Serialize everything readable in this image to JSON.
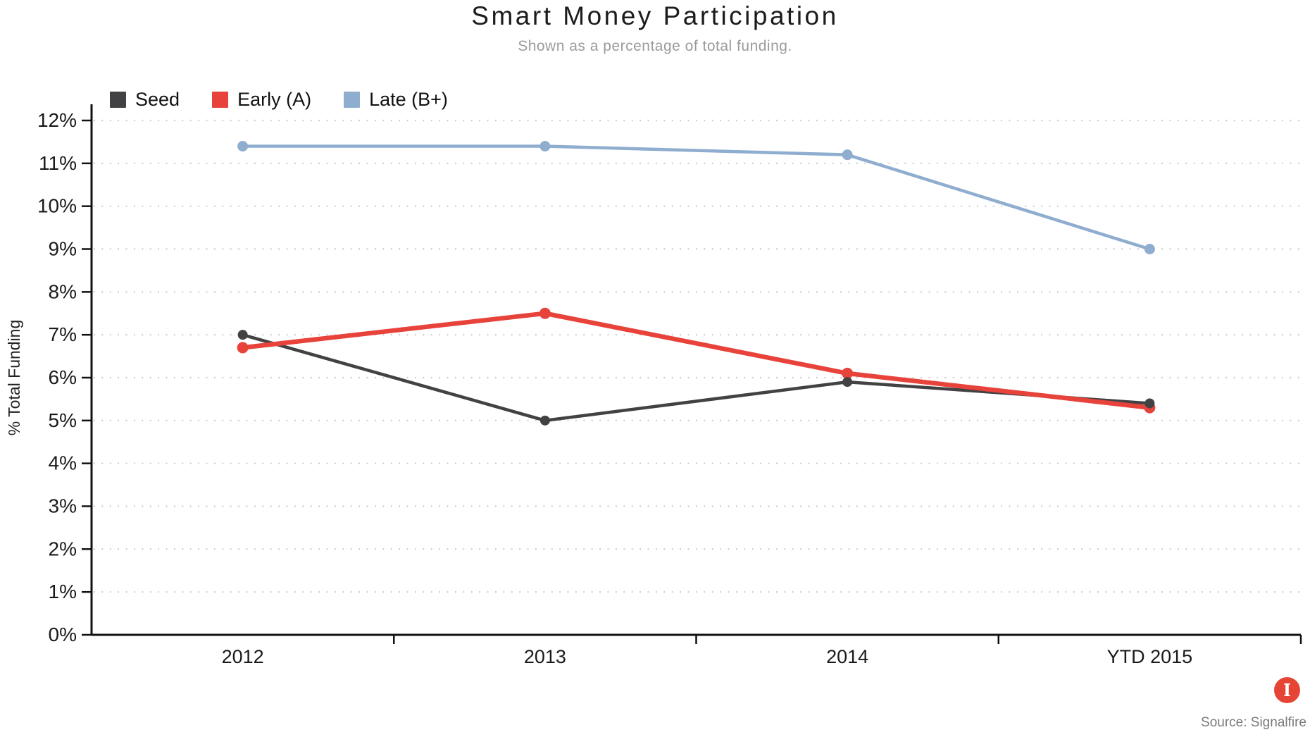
{
  "header": {
    "title": "Smart Money Participation",
    "subtitle": "Shown as a percentage of total funding."
  },
  "chart_data": {
    "type": "line",
    "categories": [
      "2012",
      "2013",
      "2014",
      "YTD 2015"
    ],
    "series": [
      {
        "name": "Seed",
        "color": "#424143",
        "line_width": 4.5,
        "marker_r": 7,
        "values": [
          7.0,
          5.0,
          5.9,
          5.4
        ]
      },
      {
        "name": "Early (A)",
        "color": "#e8433a",
        "line_width": 6.5,
        "marker_r": 8,
        "values": [
          6.7,
          7.5,
          6.1,
          5.3
        ]
      },
      {
        "name": "Late (B+)",
        "color": "#8fadce",
        "line_width": 4.5,
        "marker_r": 7.5,
        "values": [
          11.4,
          11.4,
          11.2,
          9.0
        ]
      }
    ],
    "title": "Smart Money Participation",
    "subtitle": "Shown as a percentage of total funding.",
    "xlabel": "",
    "ylabel": "% Total Funding",
    "ylim": [
      0,
      12
    ],
    "yticks": [
      "0%",
      "1%",
      "2%",
      "3%",
      "4%",
      "5%",
      "6%",
      "7%",
      "8%",
      "9%",
      "10%",
      "11%",
      "12%"
    ],
    "grid": "horizontal-dotted",
    "grid_color": "#c9c9c9",
    "axis_color": "#111111",
    "legend_position": "top-left"
  },
  "footer": {
    "source": "Source: Signalfire",
    "logo": {
      "letter": "I",
      "color": "#e64535"
    }
  }
}
